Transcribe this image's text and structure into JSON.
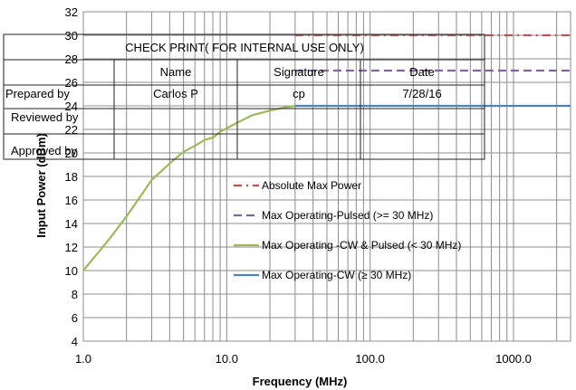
{
  "chart_data": {
    "type": "line",
    "xlabel": "Frequency (MHz)",
    "ylabel": "Input Power (dBm)",
    "x_scale": "log",
    "xlim": [
      1,
      2500
    ],
    "ylim": [
      4,
      32
    ],
    "x_ticks": [
      {
        "value": 1,
        "label": "1.0"
      },
      {
        "value": 10,
        "label": "10.0"
      },
      {
        "value": 100,
        "label": "100.0"
      },
      {
        "value": 1000,
        "label": "1000.0"
      }
    ],
    "y_ticks": [
      4,
      6,
      8,
      10,
      12,
      14,
      16,
      18,
      20,
      22,
      24,
      26,
      28,
      30,
      32
    ],
    "grid": true,
    "legend_position": "center-right",
    "series": [
      {
        "name": "Absolute Max Power",
        "color": "#c0504d",
        "style": "dash-dot",
        "x": [
          30,
          2500
        ],
        "y": [
          30,
          30
        ]
      },
      {
        "name": "Max Operating-Pulsed (>= 30 MHz)",
        "color": "#8064a2",
        "style": "dashed",
        "x": [
          30,
          2500
        ],
        "y": [
          27,
          27
        ]
      },
      {
        "name": "Max Operating -CW & Pulsed (< 30 MHz)",
        "color": "#9bbb59",
        "style": "solid",
        "x": [
          1,
          1.5,
          2,
          3,
          4,
          5,
          6,
          7,
          8,
          9,
          10,
          12,
          15,
          20,
          25,
          30
        ],
        "y": [
          10,
          12.6,
          14.6,
          17.7,
          19.1,
          20.1,
          20.6,
          21.1,
          21.3,
          21.8,
          22.1,
          22.6,
          23.2,
          23.6,
          23.85,
          24
        ]
      },
      {
        "name": "Max Operating-CW (≥ 30 MHz)",
        "color": "#4f81bd",
        "style": "solid",
        "x": [
          30,
          2500
        ],
        "y": [
          24,
          24
        ]
      }
    ]
  },
  "stamp": {
    "title": "CHECK PRINT( FOR INTERNAL USE ONLY)",
    "headers": [
      "Name",
      "Signature",
      "Date"
    ],
    "rows": [
      {
        "label": "Prepared by",
        "name": "Carlos P",
        "signature": "cp",
        "date": "7/28/16"
      },
      {
        "label": "Reviewed by",
        "name": "",
        "signature": "",
        "date": ""
      },
      {
        "label": "Approved by",
        "name": "",
        "signature": "",
        "date": ""
      }
    ]
  }
}
